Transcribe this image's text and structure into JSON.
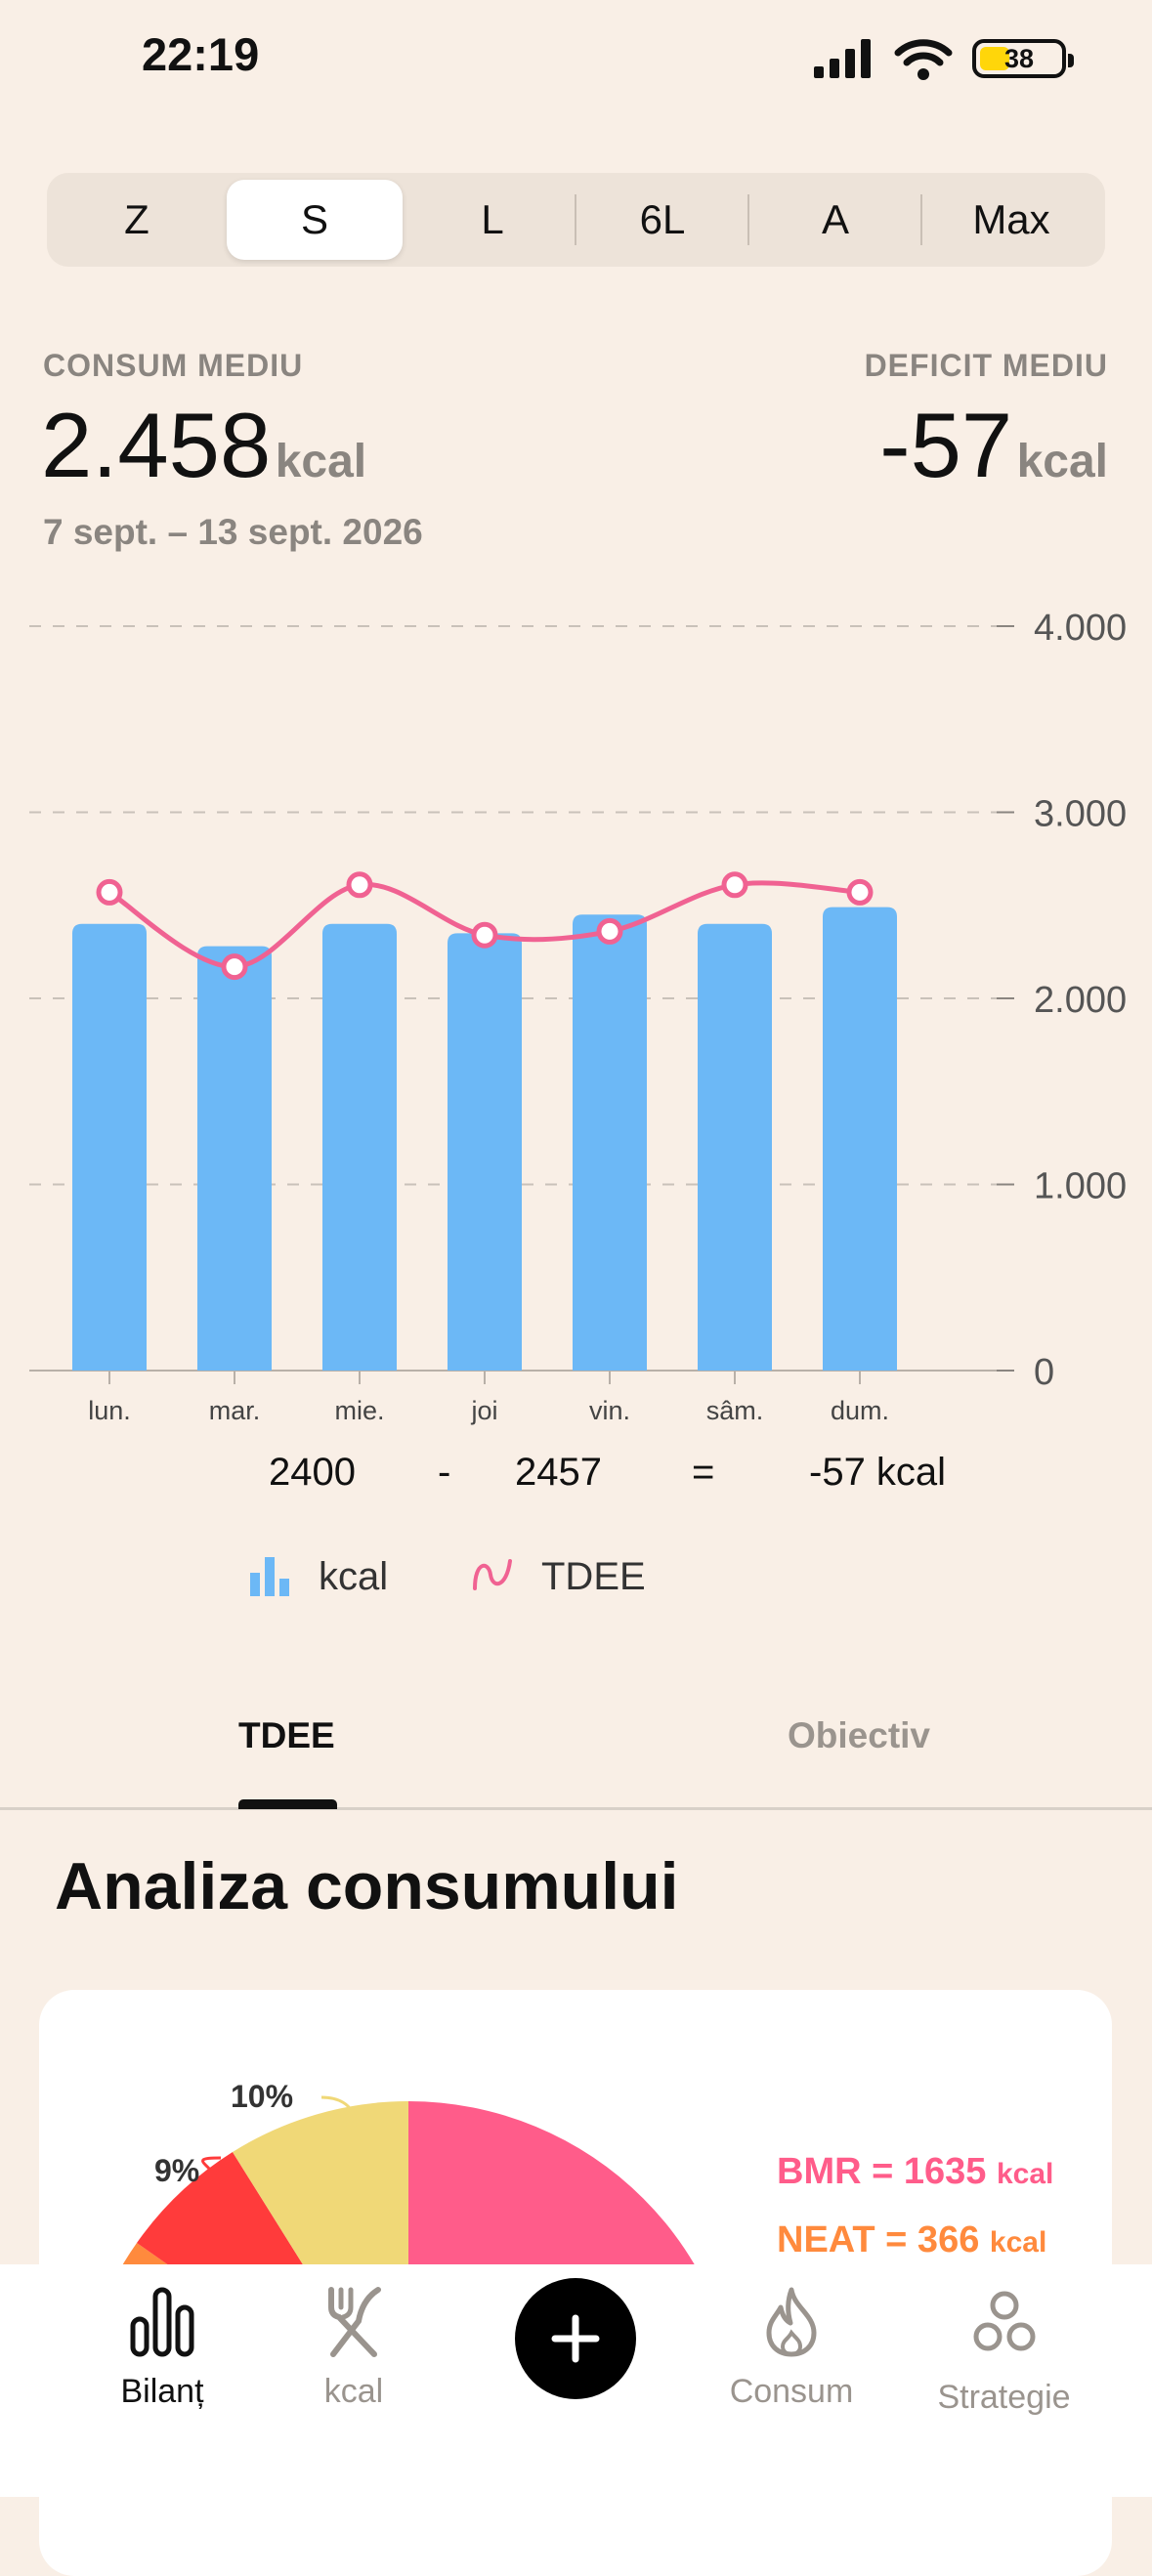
{
  "status_bar": {
    "time": "22:19",
    "battery": "38",
    "battery_level": 0.38
  },
  "periods": {
    "selected": "S",
    "items": [
      {
        "label": "Z"
      },
      {
        "label": "S"
      },
      {
        "label": "L"
      },
      {
        "label": "6L"
      },
      {
        "label": "A"
      },
      {
        "label": "Max"
      }
    ]
  },
  "summary": {
    "consum_label": "CONSUM MEDIU",
    "consum_value": "2.458",
    "consum_unit": "kcal",
    "date_range": "7 sept. – 13 sept. 2026",
    "deficit_label": "DEFICIT MEDIU",
    "deficit_value": "-57",
    "deficit_unit": "kcal"
  },
  "chart_data": {
    "type": "bar",
    "categories": [
      "lun.",
      "mar.",
      "mie.",
      "joi",
      "vin.",
      "sâm.",
      "dum."
    ],
    "y_ticks": [
      "0",
      "1.000",
      "2.000",
      "3.000",
      "4.000"
    ],
    "ylim": [
      0,
      4000
    ],
    "grid": true,
    "series": [
      {
        "name": "kcal",
        "type": "bar",
        "color": "#6cb8f6",
        "values": [
          2400,
          2280,
          2400,
          2350,
          2450,
          2400,
          2490
        ]
      },
      {
        "name": "TDEE",
        "type": "line",
        "color": "#f06292",
        "values": [
          2570,
          2170,
          2610,
          2340,
          2360,
          2610,
          2570
        ]
      }
    ]
  },
  "formula": {
    "a": "2400",
    "op1": "-",
    "b": "2457",
    "op2": "=",
    "result": "-57 kcal"
  },
  "legend": {
    "bars_label": "kcal",
    "line_label": "TDEE"
  },
  "tabs": {
    "items": [
      "TDEE",
      "Obiectiv"
    ],
    "selected": "TDEE"
  },
  "analysis": {
    "title": "Analiza consumului",
    "pct_10": "10%",
    "pct_9": "9%",
    "bmr": {
      "label": "BMR = 1635",
      "unit": "kcal",
      "color": "#ff5c8a"
    },
    "neat": {
      "label": "NEAT = 366",
      "unit": "kcal",
      "color": "#ff8a3d"
    }
  },
  "tabbar": {
    "items": [
      {
        "label": "Bilanț",
        "icon": "bars-icon",
        "active": true
      },
      {
        "label": "kcal",
        "icon": "fork-knife-icon",
        "active": false
      },
      {
        "label": "Consum",
        "icon": "flame-icon",
        "active": false
      },
      {
        "label": "Strategie",
        "icon": "circles-icon",
        "active": false
      }
    ],
    "add_icon": "plus-icon"
  }
}
